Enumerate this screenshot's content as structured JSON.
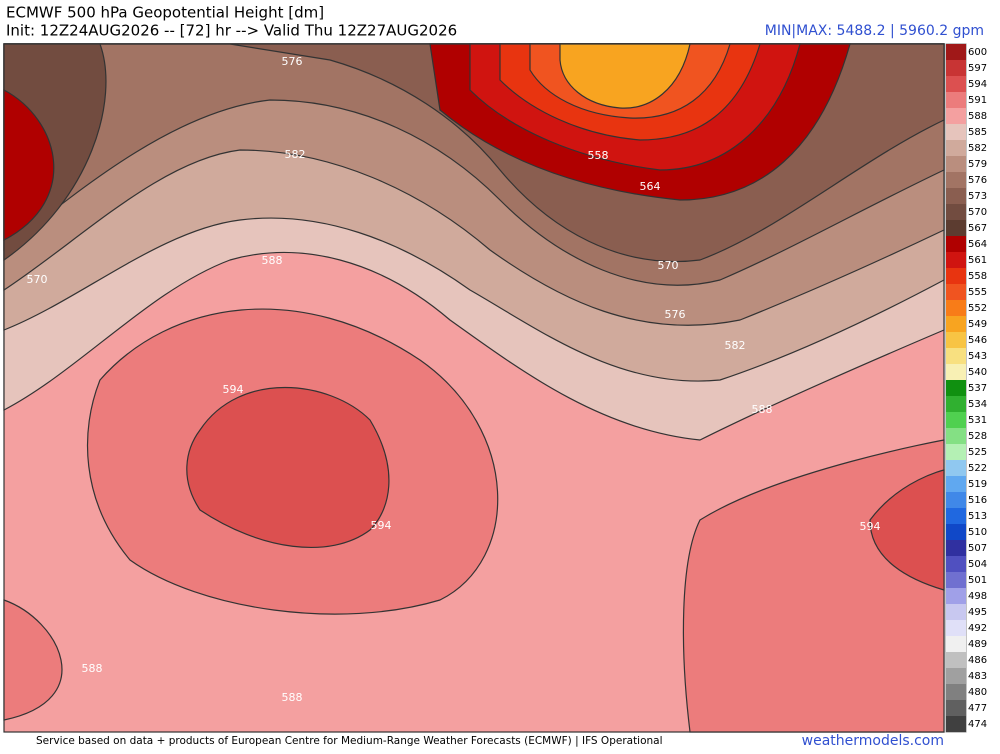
{
  "header": {
    "title": "ECMWF 500 hPa Geopotential Height [dm]",
    "init": "Init: 12Z24AUG2026 -- [72] hr --> Valid Thu 12Z27AUG2026",
    "minmax": "MIN|MAX: 5488.2 | 5960.2 gpm"
  },
  "map": {
    "contour_labels": [
      "576",
      "582",
      "588",
      "594",
      "570",
      "558",
      "564",
      "570",
      "576",
      "582",
      "588",
      "594",
      "588",
      "588",
      "594"
    ]
  },
  "colorbar": {
    "levels": [
      {
        "value": 600,
        "color": "#a01818"
      },
      {
        "value": 597,
        "color": "#c83434"
      },
      {
        "value": 594,
        "color": "#dc5050"
      },
      {
        "value": 591,
        "color": "#ec7c7c"
      },
      {
        "value": 588,
        "color": "#f4a0a0"
      },
      {
        "value": 585,
        "color": "#e6c4bc"
      },
      {
        "value": 582,
        "color": "#d0aa9c"
      },
      {
        "value": 579,
        "color": "#ba8e7e"
      },
      {
        "value": 576,
        "color": "#a27464"
      },
      {
        "value": 573,
        "color": "#8a5e50"
      },
      {
        "value": 570,
        "color": "#724c40"
      },
      {
        "value": 567,
        "color": "#5c3c30"
      },
      {
        "value": 564,
        "color": "#b00000"
      },
      {
        "value": 561,
        "color": "#d01410"
      },
      {
        "value": 558,
        "color": "#e83410"
      },
      {
        "value": 555,
        "color": "#f05420"
      },
      {
        "value": 552,
        "color": "#f87c18"
      },
      {
        "value": 549,
        "color": "#f8a420"
      },
      {
        "value": 546,
        "color": "#f8c444"
      },
      {
        "value": 543,
        "color": "#f8e080"
      },
      {
        "value": 540,
        "color": "#f8f0b4"
      },
      {
        "value": 537,
        "color": "#109010"
      },
      {
        "value": 534,
        "color": "#30b030"
      },
      {
        "value": 531,
        "color": "#50d050"
      },
      {
        "value": 528,
        "color": "#84e084"
      },
      {
        "value": 525,
        "color": "#b4f0b4"
      },
      {
        "value": 522,
        "color": "#90c8f0"
      },
      {
        "value": 519,
        "color": "#60a8f0"
      },
      {
        "value": 516,
        "color": "#4088e8"
      },
      {
        "value": 513,
        "color": "#2068e0"
      },
      {
        "value": 510,
        "color": "#1048c8"
      },
      {
        "value": 507,
        "color": "#3030a0"
      },
      {
        "value": 504,
        "color": "#5050c0"
      },
      {
        "value": 501,
        "color": "#7070d0"
      },
      {
        "value": 498,
        "color": "#a0a0e8"
      },
      {
        "value": 495,
        "color": "#c8c8f0"
      },
      {
        "value": 492,
        "color": "#e0e0f8"
      },
      {
        "value": 489,
        "color": "#f0f0f0"
      },
      {
        "value": 486,
        "color": "#c0c0c0"
      },
      {
        "value": 483,
        "color": "#a0a0a0"
      },
      {
        "value": 480,
        "color": "#808080"
      },
      {
        "value": 477,
        "color": "#606060"
      },
      {
        "value": 474,
        "color": "#404040"
      }
    ]
  },
  "footer": {
    "credit": "Service based on data + products of European Centre for Medium-Range Weather Forecasts (ECMWF) | IFS Operational",
    "site": "weathermodels.com"
  }
}
